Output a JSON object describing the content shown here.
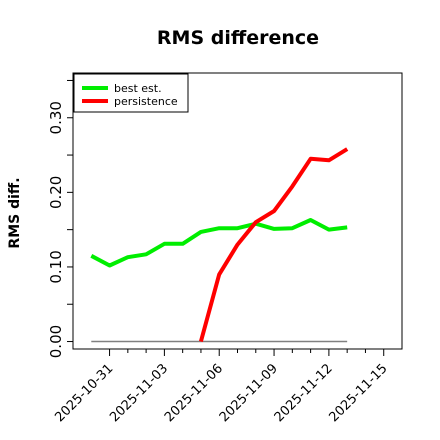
{
  "chart_data": {
    "type": "line",
    "title": "RMS difference",
    "xlabel": "",
    "ylabel": "RMS diff.",
    "x_ticks": [
      "2025-10-31",
      "2025-11-03",
      "2025-11-06",
      "2025-11-09",
      "2025-11-12",
      "2025-11-15"
    ],
    "y_ticks": [
      "0.00",
      "0.10",
      "0.20",
      "0.30"
    ],
    "xlim": [
      "2025-10-29",
      "2025-11-16"
    ],
    "ylim": [
      -0.01,
      0.36
    ],
    "grid": false,
    "legend_position": "top-left",
    "series": [
      {
        "name": "best est.",
        "color": "#00ee00",
        "x": [
          "2025-10-30",
          "2025-10-31",
          "2025-11-01",
          "2025-11-02",
          "2025-11-03",
          "2025-11-04",
          "2025-11-05",
          "2025-11-06",
          "2025-11-07",
          "2025-11-08",
          "2025-11-09",
          "2025-11-10",
          "2025-11-11",
          "2025-11-12",
          "2025-11-13"
        ],
        "values": [
          0.115,
          0.102,
          0.113,
          0.117,
          0.131,
          0.131,
          0.147,
          0.152,
          0.152,
          0.158,
          0.151,
          0.152,
          0.163,
          0.15,
          0.153
        ]
      },
      {
        "name": "persistence",
        "color": "#ff0000",
        "x": [
          "2025-11-05",
          "2025-11-06",
          "2025-11-07",
          "2025-11-08",
          "2025-11-09",
          "2025-11-10",
          "2025-11-11",
          "2025-11-12",
          "2025-11-13"
        ],
        "values": [
          0.0,
          0.09,
          0.13,
          0.16,
          0.175,
          0.208,
          0.245,
          0.243,
          0.258
        ]
      }
    ],
    "reference_line": {
      "color": "#808080",
      "y": 0.0,
      "x_start": "2025-10-30",
      "x_end": "2025-11-13"
    }
  }
}
